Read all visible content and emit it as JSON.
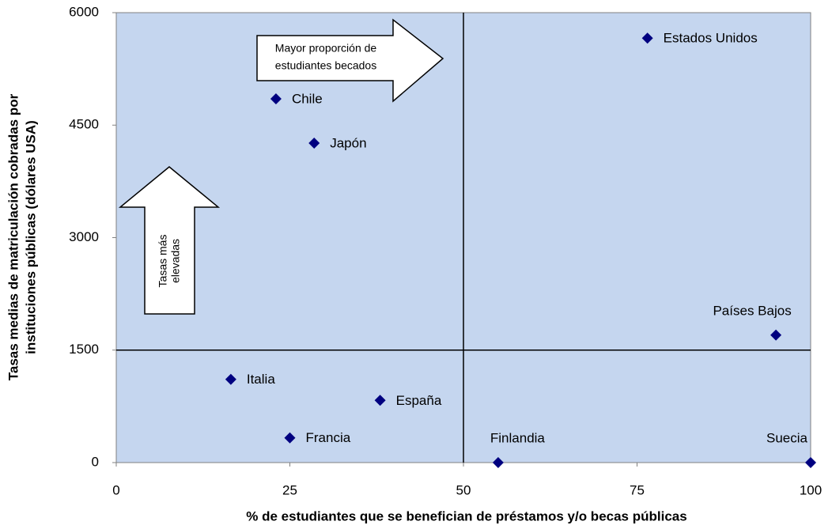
{
  "chart_data": {
    "type": "scatter",
    "xlabel": "% de estudiantes que se benefician de préstamos y/o becas públicas",
    "ylabel": [
      "Tasas medias de matriculación cobradas por",
      "instituciones públicas (dólares USA)"
    ],
    "labels": [
      "Estados Unidos",
      "Chile",
      "Japón",
      "Países Bajos",
      "Italia",
      "España",
      "Francia",
      "Finlandia",
      "Suecia"
    ],
    "x": [
      76.5,
      23,
      28.5,
      95,
      16.5,
      38,
      25,
      55,
      100
    ],
    "values": [
      5660,
      4850,
      4260,
      1700,
      1110,
      830,
      330,
      0,
      0
    ],
    "color": "#000080",
    "xlim": [
      0,
      100
    ],
    "xticks": [
      0,
      25,
      50,
      75,
      100
    ],
    "ylim": [
      0,
      6000
    ],
    "yticks": [
      0,
      1500,
      3000,
      4500,
      6000
    ],
    "reference_lines": {
      "x": 50,
      "y": 1500
    },
    "annotations": [
      {
        "lines": [
          "Mayor proporción de",
          "estudiantes becados"
        ]
      },
      {
        "lines": [
          "Tasas más",
          "elevadas"
        ]
      }
    ]
  }
}
